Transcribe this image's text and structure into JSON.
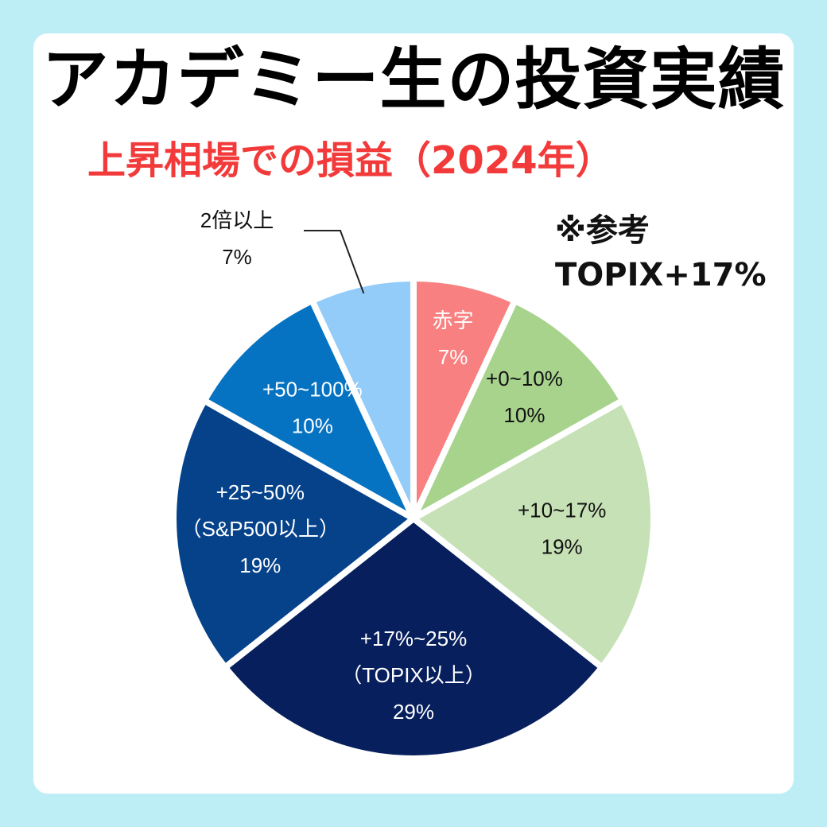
{
  "header": {
    "title": "アカデミー生の投資実績",
    "subtitle": "上昇相場での損益（2024年）"
  },
  "reference": {
    "line1": "※参考",
    "line2": "TOPIX+17%"
  },
  "chart_data": {
    "type": "pie",
    "title": "アカデミー生の投資実績",
    "subtitle": "上昇相場での損益（2024年）",
    "start": "12 o'clock",
    "direction": "clockwise",
    "slices": [
      {
        "label": "赤字",
        "value": 7,
        "display": "7%",
        "color": "#f88080",
        "text_color": "#ffffff",
        "label_lines": [
          "赤字",
          "7%"
        ]
      },
      {
        "label": "+0~10%",
        "value": 10,
        "display": "10%",
        "color": "#a7d38d",
        "text_color": "#111111",
        "label_lines": [
          "+0~10%",
          "10%"
        ]
      },
      {
        "label": "+10~17%",
        "value": 19,
        "display": "19%",
        "color": "#c6e1b5",
        "text_color": "#111111",
        "label_lines": [
          "+10~17%",
          "19%"
        ]
      },
      {
        "label": "+17%~25%（TOPIX以上）",
        "value": 29,
        "display": "29%",
        "color": "#07205d",
        "text_color": "#ffffff",
        "label_lines": [
          "+17%~25%",
          "（TOPIX以上）",
          "29%"
        ]
      },
      {
        "label": "+25~50%（S&P500以上）",
        "value": 19,
        "display": "19%",
        "color": "#05428a",
        "text_color": "#ffffff",
        "label_lines": [
          "+25~50%",
          "（S&P500以上）",
          "19%"
        ]
      },
      {
        "label": "+50~100%",
        "value": 10,
        "display": "10%",
        "color": "#0673c2",
        "text_color": "#ffffff",
        "label_lines": [
          "+50~100%",
          "10%"
        ]
      },
      {
        "label": "2倍以上",
        "value": 7,
        "display": "7%",
        "color": "#93cbf9",
        "text_color": "#111111",
        "label_lines": [
          "2倍以上",
          "7%"
        ]
      }
    ]
  }
}
